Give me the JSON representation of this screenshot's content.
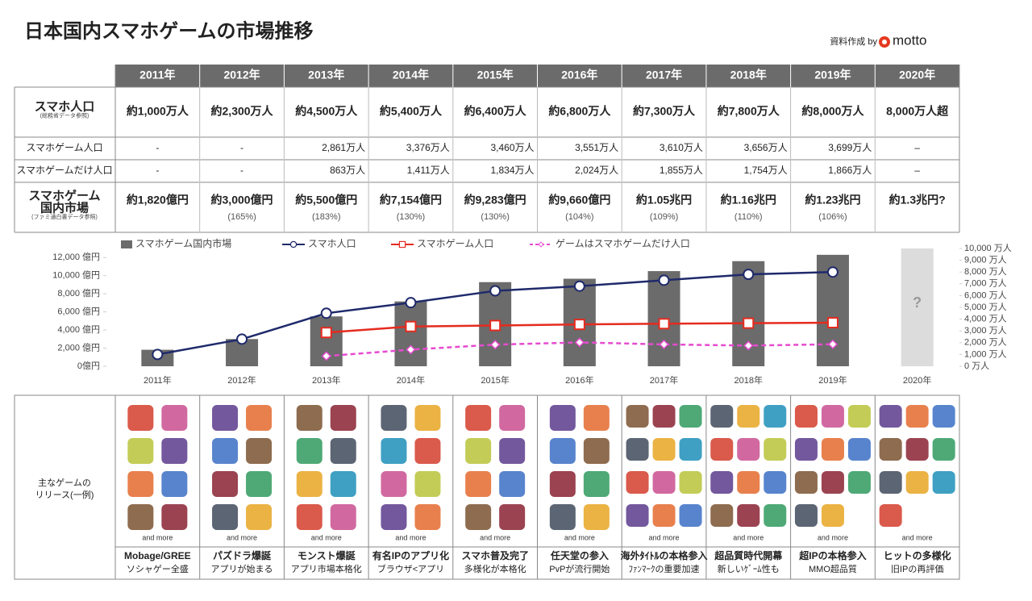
{
  "header": {
    "title": "日本国内スマホゲームの市場推移",
    "credit": "資料作成 by",
    "logo": "motto"
  },
  "table": {
    "years": [
      "2011年",
      "2012年",
      "2013年",
      "2014年",
      "2015年",
      "2016年",
      "2017年",
      "2018年",
      "2019年",
      "2020年"
    ],
    "rows": [
      {
        "label_lines": [
          "スマホ人口"
        ],
        "note": "(総務省データ参照)",
        "values": [
          "約1,000万人",
          "約2,300万人",
          "約4,500万人",
          "約5,400万人",
          "約6,400万人",
          "約6,800万人",
          "約7,300万人",
          "約7,800万人",
          "約8,000万人",
          "8,000万人超"
        ]
      },
      {
        "label_lines": [
          "スマホゲーム人口"
        ],
        "values": [
          "-",
          "-",
          "2,861万人",
          "3,376万人",
          "3,460万人",
          "3,551万人",
          "3,610万人",
          "3,656万人",
          "3,699万人",
          "–"
        ]
      },
      {
        "label_lines": [
          "スマホゲームだけ人口"
        ],
        "values": [
          "-",
          "-",
          "863万人",
          "1,411万人",
          "1,834万人",
          "2,024万人",
          "1,855万人",
          "1,754万人",
          "1,866万人",
          "–"
        ]
      },
      {
        "label_lines": [
          "スマホゲーム",
          "国内市場"
        ],
        "note": "(ファミ通白書データ参照)",
        "values": [
          "約1,820億円",
          "約3,000億円",
          "約5,500億円",
          "約7,154億円",
          "約9,283億円",
          "約9,660億円",
          "約1.05兆円",
          "約1.16兆円",
          "約1.23兆円",
          "約1.3兆円?"
        ],
        "notes": [
          null,
          "(165%)",
          "(183%)",
          "(130%)",
          "(130%)",
          "(104%)",
          "(109%)",
          "(110%)",
          "(106%)",
          null
        ]
      }
    ]
  },
  "chart_data": {
    "type": "bar_line",
    "categories": [
      "2011年",
      "2012年",
      "2013年",
      "2014年",
      "2015年",
      "2016年",
      "2017年",
      "2018年",
      "2019年",
      "2020年"
    ],
    "ylim": [
      0,
      13000
    ],
    "yticks": [
      {
        "value": 0,
        "label": "0億円"
      },
      {
        "value": 2000,
        "label": "2,000 億円"
      },
      {
        "value": 4000,
        "label": "4,000 億円"
      },
      {
        "value": 6000,
        "label": "6,000 億円"
      },
      {
        "value": 8000,
        "label": "8,000 億円"
      },
      {
        "value": 10000,
        "label": "10,000 億円"
      },
      {
        "value": 12000,
        "label": "12,000 億円"
      }
    ],
    "y2lim": [
      0,
      10000
    ],
    "y2ticks": [
      {
        "value": 0,
        "label": "0 万人"
      },
      {
        "value": 1000,
        "label": "1,000 万人"
      },
      {
        "value": 2000,
        "label": "2,000 万人"
      },
      {
        "value": 3000,
        "label": "3,000 万人"
      },
      {
        "value": 4000,
        "label": "4,000 万人"
      },
      {
        "value": 5000,
        "label": "5,000 万人"
      },
      {
        "value": 6000,
        "label": "6,000 万人"
      },
      {
        "value": 7000,
        "label": "7,000 万人"
      },
      {
        "value": 8000,
        "label": "8,000 万人"
      },
      {
        "value": 9000,
        "label": "9,000 万人"
      },
      {
        "value": 10000,
        "label": "10,000 万人"
      }
    ],
    "annotations": [
      {
        "category": "2020年",
        "text": "?"
      }
    ],
    "series": [
      {
        "name": "スマホゲーム国内市場",
        "kind": "bar",
        "colors": [
          "#6b6b6b",
          "#6b6b6b",
          "#6b6b6b",
          "#6b6b6b",
          "#6b6b6b",
          "#6b6b6b",
          "#6b6b6b",
          "#6b6b6b",
          "#6b6b6b",
          "#dcdcdc"
        ],
        "values": [
          1820,
          3000,
          5500,
          7154,
          9283,
          9660,
          10500,
          11600,
          12300,
          13000
        ]
      },
      {
        "name": "スマホ人口",
        "kind": "line",
        "axis": "y2",
        "color": "#1f2a6b",
        "marker": "circle",
        "values": [
          1000,
          2300,
          4500,
          5400,
          6400,
          6800,
          7300,
          7800,
          8000,
          null
        ]
      },
      {
        "name": "スマホゲーム人口",
        "kind": "line",
        "axis": "y2",
        "color": "#e52b1f",
        "marker": "square",
        "values": [
          null,
          null,
          2861,
          3376,
          3460,
          3551,
          3610,
          3656,
          3699,
          null
        ]
      },
      {
        "name": "ゲームはスマホゲームだけ人口",
        "kind": "line",
        "axis": "y2",
        "color": "#e64bd0",
        "marker": "diamond",
        "dashed": true,
        "values": [
          null,
          null,
          863,
          1411,
          1834,
          2024,
          1855,
          1754,
          1866,
          null
        ]
      }
    ]
  },
  "releases": {
    "label_lines": [
      "主なゲームの",
      "リリース(一例)"
    ],
    "more": "and more",
    "columns": [
      {
        "title": "Mobage/GREE",
        "subtitle": "ソシャゲー全盛"
      },
      {
        "title": "パズドラ爆誕",
        "subtitle": "アプリが始まる"
      },
      {
        "title": "モンスト爆誕",
        "subtitle": "アプリ市場本格化"
      },
      {
        "title": "有名IPのアプリ化",
        "subtitle": "ブラウザ<アプリ"
      },
      {
        "title": "スマホ普及完了",
        "subtitle": "多様化が本格化"
      },
      {
        "title": "任天堂の参入",
        "subtitle": "PvPが流行開始"
      },
      {
        "title": "海外ﾀｲﾄﾙの本格参入",
        "subtitle": "ﾌｧﾝﾏｰｸの重要加速"
      },
      {
        "title": "超品質時代開幕",
        "subtitle": "新しいｹﾞｰﾑ性も"
      },
      {
        "title": "超IPの本格参入",
        "subtitle": "MMO超品質"
      },
      {
        "title": "ヒットの多様化",
        "subtitle": "旧IPの再評価"
      }
    ]
  }
}
